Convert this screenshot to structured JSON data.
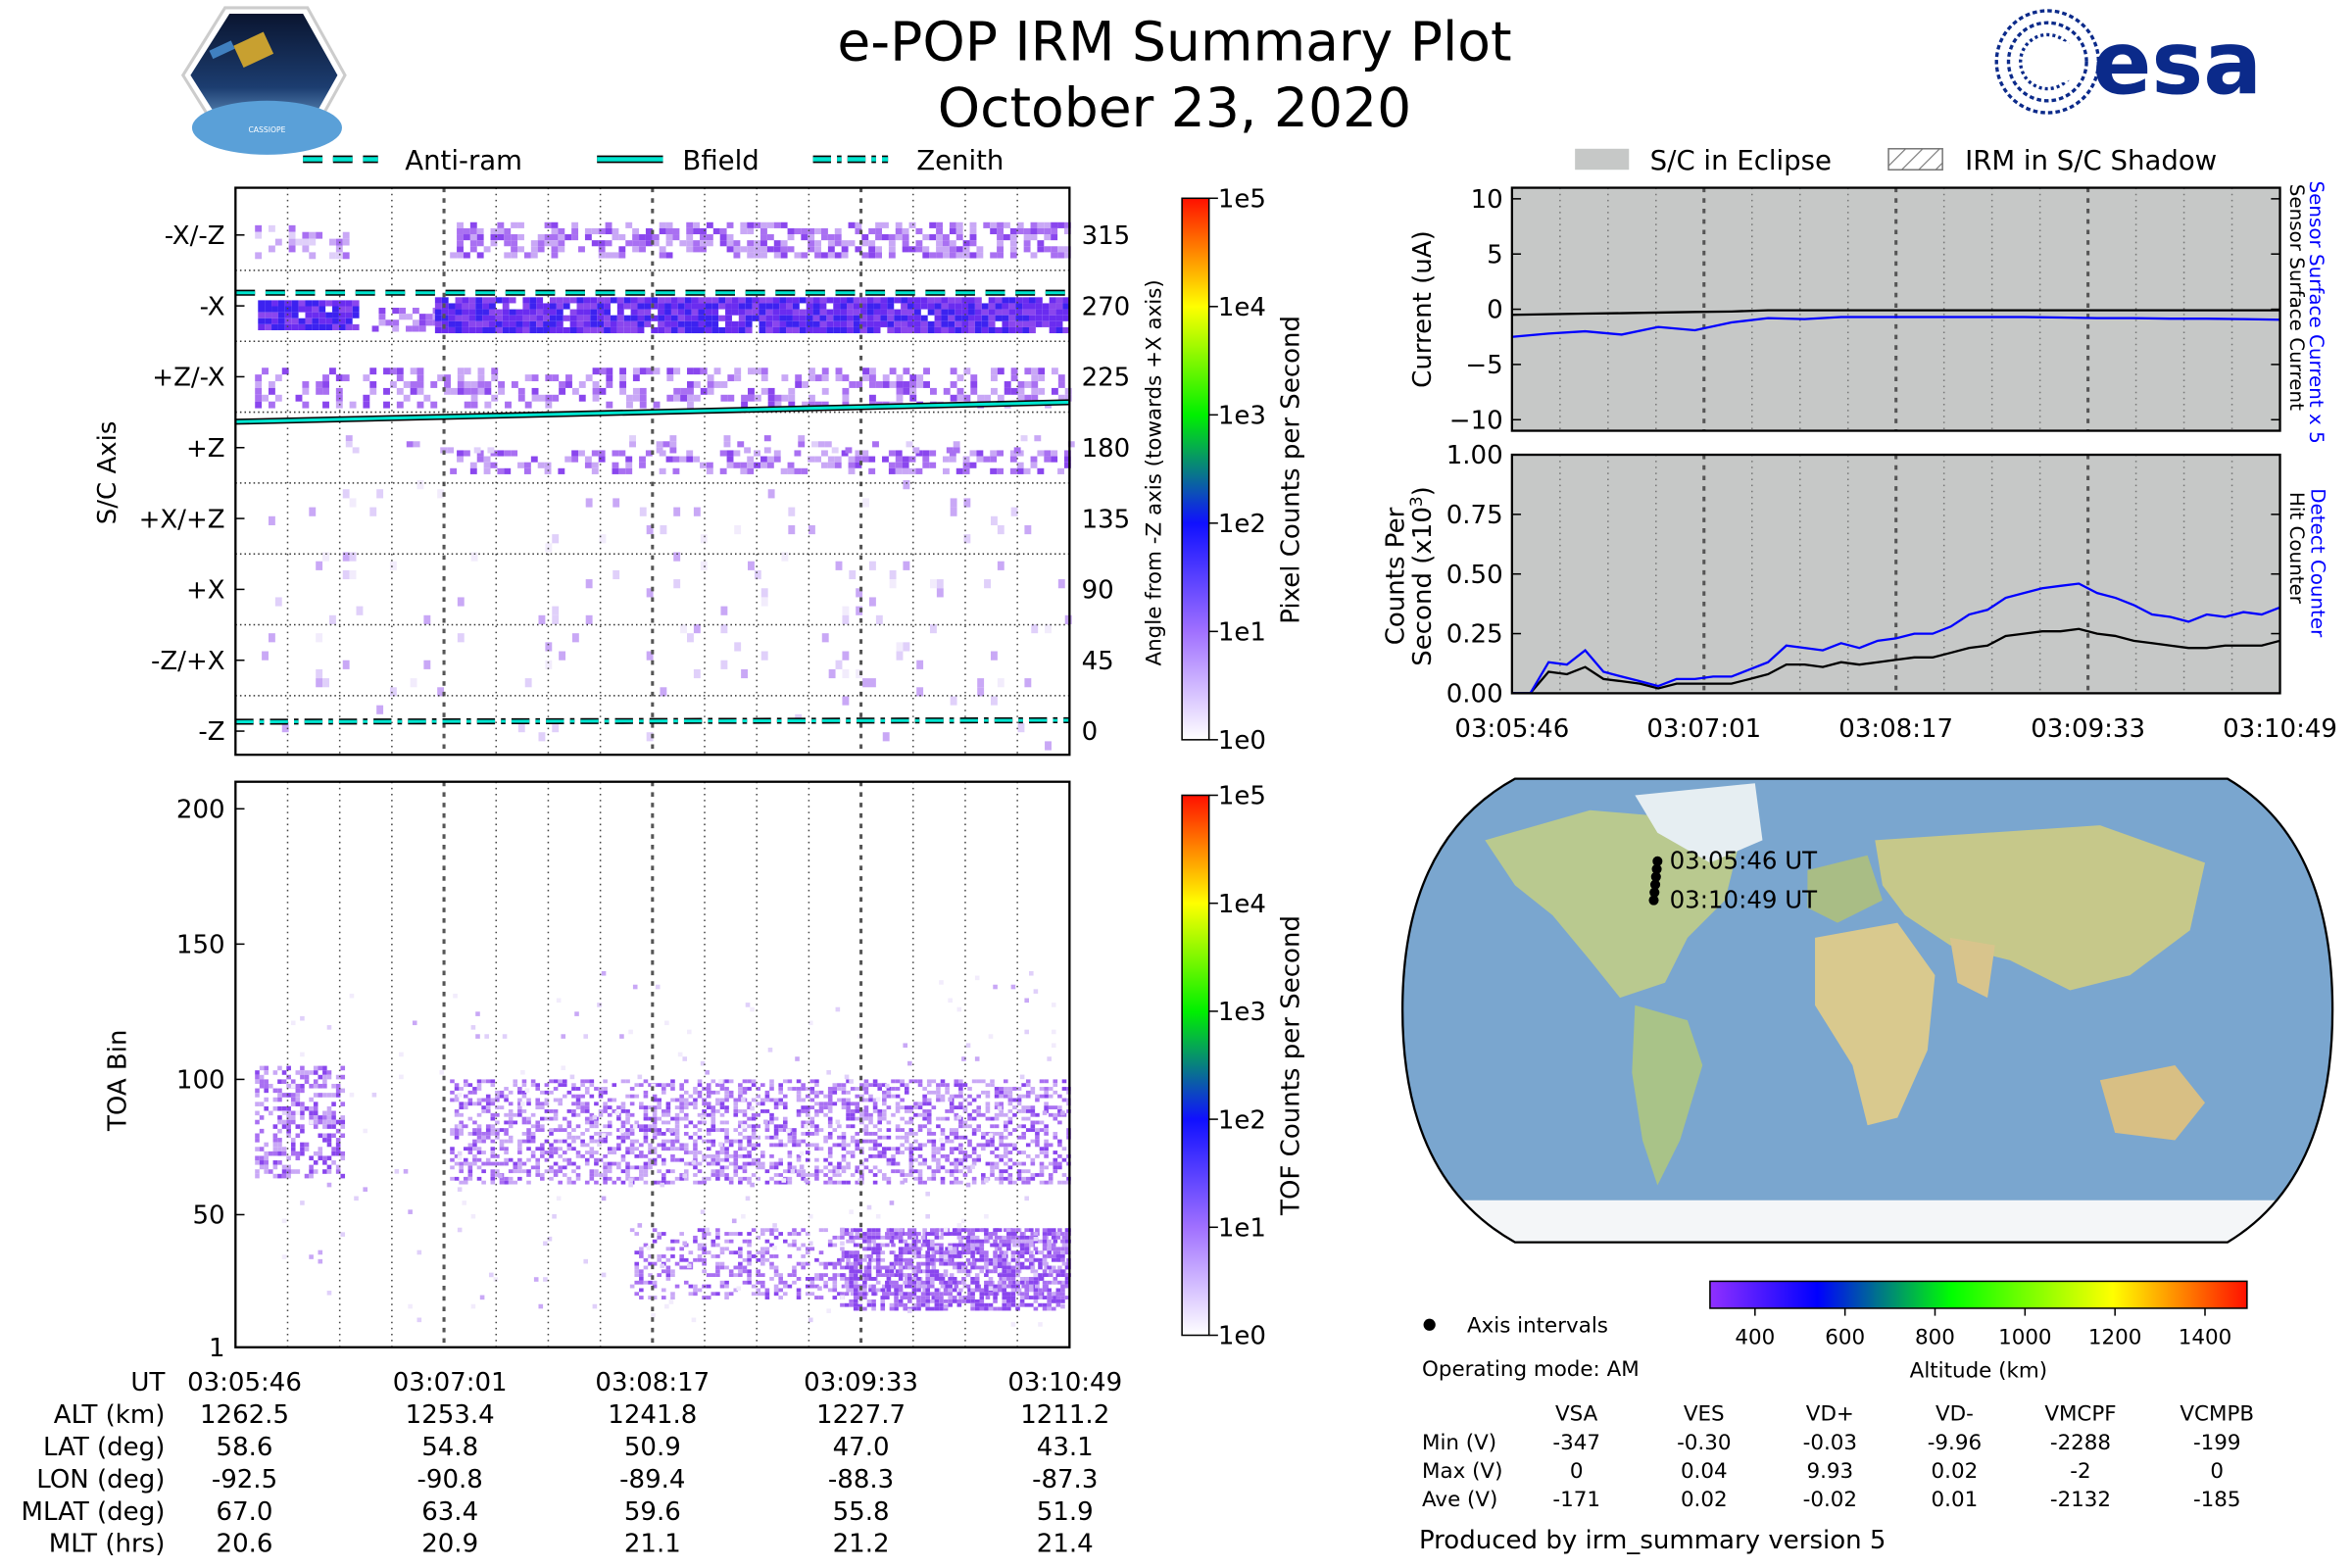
{
  "header": {
    "title": "e-POP IRM Summary Plot",
    "date": "October 23, 2020",
    "logo_left_text": "CASSIOPE",
    "logo_right_text": "esa"
  },
  "colors": {
    "anti_ram": "#00e5d0",
    "detect": "#0000ff",
    "eclipse": "#c6c8c7",
    "esa_blue": "#0b2a8a"
  },
  "legend_left": [
    {
      "label": "Anti-ram",
      "style": "dashed"
    },
    {
      "label": "Bfield",
      "style": "solid"
    },
    {
      "label": "Zenith",
      "style": "dashdot"
    }
  ],
  "legend_right": [
    {
      "label": "S/C in Eclipse"
    },
    {
      "label": "IRM in S/C Shadow"
    }
  ],
  "chart_data": [
    {
      "type": "heatmap",
      "title": "Pixel Counts",
      "ylabel": "S/C Axis",
      "ylabel_right": "Angle from -Z axis (towards +X axis)",
      "yticks_left": [
        "-X/-Z",
        "-X",
        "+Z/-X",
        "+Z",
        "+X/+Z",
        "+X",
        "-Z/+X",
        "-Z"
      ],
      "yticks_right": [
        "315",
        "270",
        "225",
        "180",
        "135",
        "90",
        "45",
        "0"
      ],
      "ylim": [
        -15,
        345
      ],
      "colorbar": {
        "label": "Pixel Counts per Second",
        "ticks": [
          "1e5",
          "1e4",
          "1e3",
          "1e2",
          "1e1",
          "1e0"
        ]
      },
      "lines": {
        "anti_ram_deg": 274,
        "bfield_deg": [
          190,
          202
        ],
        "zenith_deg": 0
      }
    },
    {
      "type": "heatmap",
      "title": "TOF Counts",
      "ylabel": "TOA Bin",
      "yticks": [
        "200",
        "150",
        "100",
        "50",
        "1"
      ],
      "ylim": [
        1,
        210
      ],
      "colorbar": {
        "label": "TOF Counts per Second",
        "ticks": [
          "1e5",
          "1e4",
          "1e3",
          "1e2",
          "1e1",
          "1e0"
        ]
      }
    },
    {
      "type": "line",
      "ylabel": "Current (uA)",
      "ylim": [
        -11,
        11
      ],
      "yticks": [
        "10",
        "5",
        "0",
        "−5",
        "−10"
      ],
      "right_labels": [
        "Sensor Surface Current x 5",
        "Sensor Surface Current"
      ],
      "series": [
        {
          "name": "Sensor Surface Current x 5",
          "color": "#0000ff",
          "values": [
            -2.5,
            -2.2,
            -2.0,
            -2.3,
            -1.6,
            -1.9,
            -1.2,
            -0.8,
            -0.9,
            -0.7,
            -0.7,
            -0.7,
            -0.7,
            -0.7,
            -0.7,
            -0.75,
            -0.8,
            -0.8,
            -0.85,
            -0.85,
            -0.9,
            -0.95
          ]
        },
        {
          "name": "Sensor Surface Current",
          "color": "#000000",
          "values": [
            -0.5,
            -0.45,
            -0.4,
            -0.35,
            -0.3,
            -0.25,
            -0.2,
            -0.1,
            -0.1,
            -0.1,
            -0.1,
            -0.1,
            -0.1,
            -0.1,
            -0.1,
            -0.1,
            -0.1,
            -0.1,
            -0.1,
            -0.1,
            -0.1,
            -0.1
          ]
        }
      ]
    },
    {
      "type": "line",
      "ylabel": "Counts Per Second (x10^3)",
      "ylabel_line1": "Counts Per",
      "ylabel_line2": "Second (x10",
      "ylabel_sup": "3",
      "ylim": [
        0,
        1
      ],
      "yticks": [
        "1.00",
        "0.75",
        "0.50",
        "0.25",
        "0.00"
      ],
      "xticks": [
        "03:05:46",
        "03:07:01",
        "03:08:17",
        "03:09:33",
        "03:10:49"
      ],
      "right_labels": [
        "Detect Counter",
        "Hit Counter"
      ],
      "series": [
        {
          "name": "Detect Counter",
          "color": "#0000ff",
          "values": [
            0,
            0,
            0.13,
            0.12,
            0.18,
            0.09,
            0.07,
            0.05,
            0.03,
            0.06,
            0.06,
            0.07,
            0.07,
            0.1,
            0.13,
            0.2,
            0.19,
            0.18,
            0.21,
            0.19,
            0.22,
            0.23,
            0.25,
            0.25,
            0.28,
            0.33,
            0.35,
            0.4,
            0.42,
            0.44,
            0.45,
            0.46,
            0.42,
            0.4,
            0.37,
            0.33,
            0.32,
            0.3,
            0.33,
            0.32,
            0.34,
            0.33,
            0.36
          ]
        },
        {
          "name": "Hit Counter",
          "color": "#000000",
          "values": [
            0,
            0,
            0.09,
            0.08,
            0.11,
            0.06,
            0.05,
            0.04,
            0.02,
            0.04,
            0.04,
            0.04,
            0.04,
            0.06,
            0.08,
            0.12,
            0.12,
            0.11,
            0.13,
            0.12,
            0.13,
            0.14,
            0.15,
            0.15,
            0.17,
            0.19,
            0.2,
            0.24,
            0.25,
            0.26,
            0.26,
            0.27,
            0.25,
            0.24,
            0.22,
            0.21,
            0.2,
            0.19,
            0.19,
            0.2,
            0.2,
            0.2,
            0.22
          ]
        }
      ]
    }
  ],
  "time_axis": {
    "rows": [
      {
        "label": "UT",
        "values": [
          "03:05:46",
          "03:07:01",
          "03:08:17",
          "03:09:33",
          "03:10:49"
        ]
      },
      {
        "label": "ALT (km)",
        "values": [
          "1262.5",
          "1253.4",
          "1241.8",
          "1227.7",
          "1211.2"
        ]
      },
      {
        "label": "LAT (deg)",
        "values": [
          "58.6",
          "54.8",
          "50.9",
          "47.0",
          "43.1"
        ]
      },
      {
        "label": "LON (deg)",
        "values": [
          "-92.5",
          "-90.8",
          "-89.4",
          "-88.3",
          "-87.3"
        ]
      },
      {
        "label": "MLAT (deg)",
        "values": [
          "67.0",
          "63.4",
          "59.6",
          "55.8",
          "51.9"
        ]
      },
      {
        "label": "MLT (hrs)",
        "values": [
          "20.6",
          "20.9",
          "21.1",
          "21.2",
          "21.4"
        ]
      }
    ]
  },
  "map": {
    "start_label": "03:05:46 UT",
    "end_label": "03:10:49 UT",
    "track_points": 6,
    "legend_label": "Axis intervals",
    "colorbar_label": "Altitude (km)",
    "colorbar_ticks": [
      "400",
      "600",
      "800",
      "1000",
      "1200",
      "1400"
    ]
  },
  "operating_mode": "Operating mode: AM",
  "voltage_table": {
    "columns": [
      "VSA",
      "VES",
      "VD+",
      "VD-",
      "VMCPF",
      "VCMPB"
    ],
    "rows": [
      {
        "label": "Min (V)",
        "values": [
          "-347",
          "-0.30",
          "-0.03",
          "-9.96",
          "-2288",
          "-199"
        ]
      },
      {
        "label": "Max (V)",
        "values": [
          "0",
          "0.04",
          "9.93",
          "0.02",
          "-2",
          "0"
        ]
      },
      {
        "label": "Ave (V)",
        "values": [
          "-171",
          "0.02",
          "-0.02",
          "0.01",
          "-2132",
          "-185"
        ]
      }
    ]
  },
  "footer": "Produced by irm_summary version 5"
}
